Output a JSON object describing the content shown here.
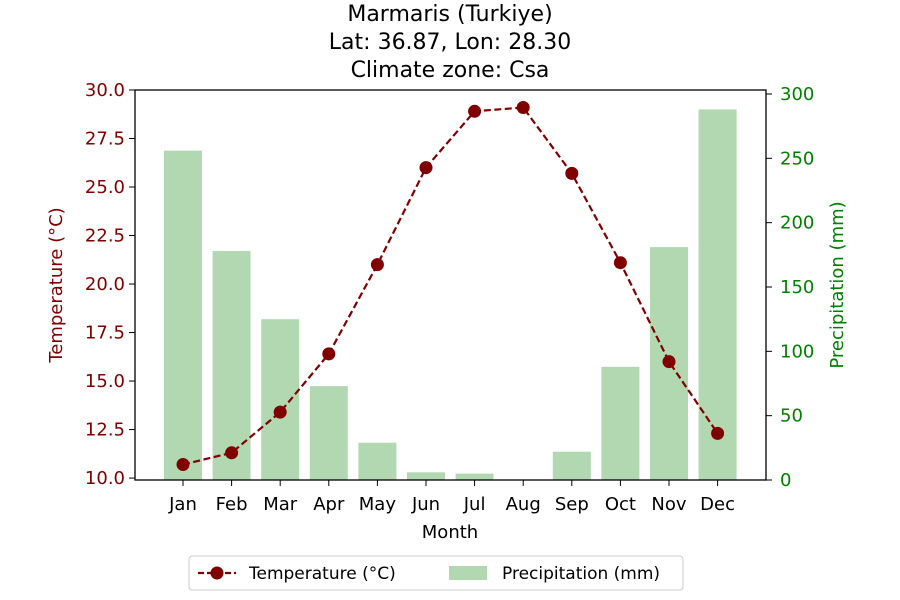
{
  "chart_data": {
    "type": "bar+line",
    "title": [
      "Marmaris (Turkiye)",
      "Lat: 36.87, Lon: 28.30",
      "Climate zone: Csa"
    ],
    "xlabel": "Month",
    "categories": [
      "Jan",
      "Feb",
      "Mar",
      "Apr",
      "May",
      "Jun",
      "Jul",
      "Aug",
      "Sep",
      "Oct",
      "Nov",
      "Dec"
    ],
    "temperature": {
      "name": "Temperature (°C)",
      "axis_label": "Temperature (°C)",
      "values": [
        10.7,
        11.3,
        13.4,
        16.4,
        21.0,
        26.0,
        28.9,
        29.1,
        25.7,
        21.1,
        16.0,
        12.3
      ],
      "ylim": [
        9.9,
        30.0
      ],
      "ticks": [
        "10.0",
        "12.5",
        "15.0",
        "17.5",
        "20.0",
        "22.5",
        "25.0",
        "27.5",
        "30.0"
      ],
      "tick_values": [
        10.0,
        12.5,
        15.0,
        17.5,
        20.0,
        22.5,
        25.0,
        27.5,
        30.0
      ],
      "color": "#800000",
      "style": "dashed line with circle markers"
    },
    "precipitation": {
      "name": "Precipitation (mm)",
      "axis_label": "Precipitation (mm)",
      "values": [
        256,
        178,
        125,
        73,
        29,
        6,
        5,
        0,
        22,
        88,
        181,
        288
      ],
      "ylim": [
        0,
        300
      ],
      "ticks": [
        "0",
        "50",
        "100",
        "150",
        "200",
        "250",
        "300"
      ],
      "tick_values": [
        0,
        50,
        100,
        150,
        200,
        250,
        300
      ],
      "bar_color": "#b2d8b2",
      "axis_color": "#008000"
    },
    "legend": {
      "placement": "bottom-center",
      "items": [
        "Temperature (°C)",
        "Precipitation (mm)"
      ]
    },
    "grid": false
  }
}
